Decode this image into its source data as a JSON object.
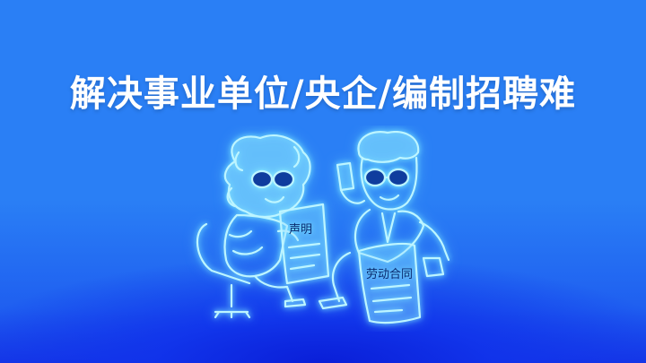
{
  "headline": "解决事业单位/央企/编制招聘难",
  "illustration": {
    "left_document_label": "声明",
    "right_document_label": "劳动合同"
  },
  "colors": {
    "background": "#2a7ff5",
    "background_bottom": "#0a1fd8",
    "headline_text": "#ffffff",
    "line_art": "#bdf5ff"
  }
}
